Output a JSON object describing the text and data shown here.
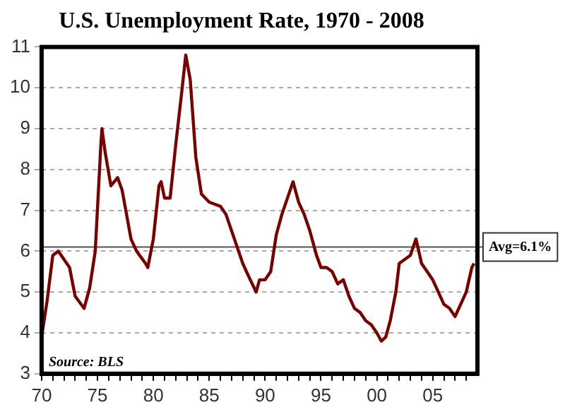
{
  "chart_data": {
    "type": "line",
    "title": "U.S. Unemployment Rate, 1970 - 2008",
    "annotations": [
      "Source: BLS"
    ],
    "x": [
      1970.0,
      1970.5,
      1971.0,
      1971.5,
      1972.0,
      1972.5,
      1973.0,
      1973.8,
      1974.3,
      1974.8,
      1975.3,
      1975.4,
      1975.7,
      1976.2,
      1976.8,
      1977.2,
      1978.0,
      1978.5,
      1979.3,
      1979.5,
      1980.0,
      1980.5,
      1980.7,
      1981.0,
      1981.5,
      1982.0,
      1982.5,
      1982.9,
      1983.3,
      1983.8,
      1984.3,
      1985.0,
      1986.0,
      1986.5,
      1987.0,
      1987.5,
      1988.0,
      1988.5,
      1989.2,
      1989.5,
      1990.0,
      1990.5,
      1991.0,
      1991.5,
      1992.5,
      1993.0,
      1993.5,
      1994.0,
      1994.6,
      1995.0,
      1995.5,
      1996.0,
      1996.5,
      1997.0,
      1997.5,
      1998.0,
      1998.5,
      1999.0,
      1999.5,
      2000.0,
      2000.4,
      2000.8,
      2001.2,
      2001.7,
      2002.0,
      2002.5,
      2003.0,
      2003.5,
      2004.0,
      2004.5,
      2005.0,
      2005.5,
      2006.0,
      2006.5,
      2007.0,
      2007.5,
      2008.0,
      2008.5,
      2008.7
    ],
    "series": [
      {
        "color": "#7a0000",
        "values": [
          3.9,
          4.8,
          5.9,
          6.0,
          5.8,
          5.6,
          4.9,
          4.6,
          5.1,
          6.0,
          8.6,
          9.0,
          8.4,
          7.6,
          7.8,
          7.5,
          6.3,
          6.0,
          5.7,
          5.6,
          6.3,
          7.6,
          7.7,
          7.3,
          7.3,
          8.6,
          9.8,
          10.8,
          10.2,
          8.3,
          7.4,
          7.2,
          7.1,
          6.9,
          6.5,
          6.1,
          5.7,
          5.4,
          5.0,
          5.3,
          5.3,
          5.5,
          6.4,
          6.9,
          7.7,
          7.2,
          6.9,
          6.5,
          5.9,
          5.6,
          5.6,
          5.5,
          5.2,
          5.3,
          4.9,
          4.6,
          4.5,
          4.3,
          4.2,
          4.0,
          3.8,
          3.9,
          4.3,
          5.0,
          5.7,
          5.8,
          5.9,
          6.3,
          5.7,
          5.5,
          5.3,
          5.0,
          4.7,
          4.6,
          4.4,
          4.7,
          5.0,
          5.6,
          5.7
        ]
      }
    ],
    "xlim": [
      1970,
      2009
    ],
    "xticks": [
      {
        "value": 1970,
        "label": "70"
      },
      {
        "value": 1971,
        "label": null
      },
      {
        "value": 1972,
        "label": null
      },
      {
        "value": 1973,
        "label": null
      },
      {
        "value": 1974,
        "label": null
      },
      {
        "value": 1975,
        "label": "75"
      },
      {
        "value": 1976,
        "label": null
      },
      {
        "value": 1977,
        "label": null
      },
      {
        "value": 1978,
        "label": null
      },
      {
        "value": 1979,
        "label": null
      },
      {
        "value": 1980,
        "label": "80"
      },
      {
        "value": 1981,
        "label": null
      },
      {
        "value": 1982,
        "label": null
      },
      {
        "value": 1983,
        "label": null
      },
      {
        "value": 1984,
        "label": null
      },
      {
        "value": 1985,
        "label": "85"
      },
      {
        "value": 1986,
        "label": null
      },
      {
        "value": 1987,
        "label": null
      },
      {
        "value": 1988,
        "label": null
      },
      {
        "value": 1989,
        "label": null
      },
      {
        "value": 1990,
        "label": "90"
      },
      {
        "value": 1991,
        "label": null
      },
      {
        "value": 1992,
        "label": null
      },
      {
        "value": 1993,
        "label": null
      },
      {
        "value": 1994,
        "label": null
      },
      {
        "value": 1995,
        "label": "95"
      },
      {
        "value": 1996,
        "label": null
      },
      {
        "value": 1997,
        "label": null
      },
      {
        "value": 1998,
        "label": null
      },
      {
        "value": 1999,
        "label": null
      },
      {
        "value": 2000,
        "label": "00"
      },
      {
        "value": 2001,
        "label": null
      },
      {
        "value": 2002,
        "label": null
      },
      {
        "value": 2003,
        "label": null
      },
      {
        "value": 2004,
        "label": null
      },
      {
        "value": 2005,
        "label": "05"
      },
      {
        "value": 2006,
        "label": null
      },
      {
        "value": 2007,
        "label": null
      },
      {
        "value": 2008,
        "label": null
      }
    ],
    "ylim": [
      3,
      11
    ],
    "yticks": [
      3,
      4,
      5,
      6,
      7,
      8,
      9,
      10,
      11
    ],
    "ref_lines": [
      {
        "axis": "y",
        "value": 6.1,
        "label": "Avg=6.1%",
        "color": "#555555"
      }
    ],
    "grid": "y",
    "legend": false,
    "marker": "none",
    "line_style": "solid"
  }
}
